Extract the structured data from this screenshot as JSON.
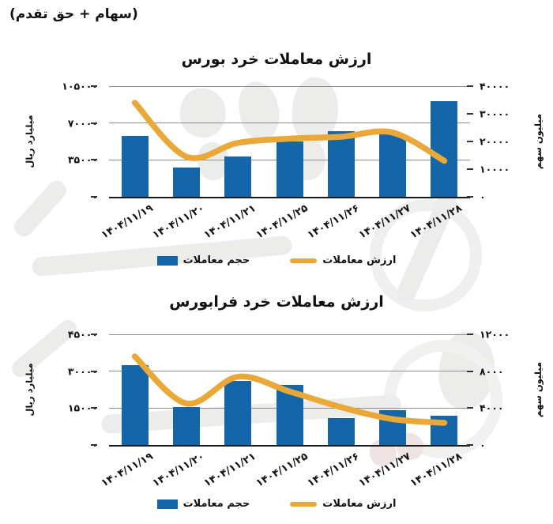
{
  "header": {
    "note": "(سهام + حق تقدم)"
  },
  "colors": {
    "bar": "#1466A8",
    "line": "#E9A838",
    "gridline": "#8C8C8C",
    "baseline": "#1A1A1A",
    "text": "#111111",
    "watermark": "#ECECEB"
  },
  "legend": {
    "volume_label": "حجم معاملات",
    "value_label": "ارزش معاملات"
  },
  "chart_data": [
    {
      "type": "bar",
      "title": "ارزش معاملات خرد بورس",
      "categories": [
        "۱۴۰۴/۱۱/۱۹",
        "۱۴۰۴/۱۱/۲۰",
        "۱۴۰۴/۱۱/۲۱",
        "۱۴۰۴/۱۱/۲۵",
        "۱۴۰۴/۱۱/۲۶",
        "۱۴۰۴/۱۱/۲۷",
        "۱۴۰۴/۱۱/۲۸"
      ],
      "series": [
        {
          "name": "حجم معاملات",
          "type": "bar",
          "axis": "left",
          "values": [
            57500,
            27700,
            38000,
            52500,
            62500,
            59000,
            90500
          ]
        },
        {
          "name": "ارزش معاملات",
          "type": "line",
          "axis": "right",
          "values": [
            34000,
            14500,
            19500,
            21000,
            21700,
            23200,
            13000
          ]
        }
      ],
      "left_axis": {
        "label": "میلیارد ریال",
        "ticks": [
          0,
          35000,
          70000,
          105000
        ],
        "max": 105000
      },
      "right_axis": {
        "label": "میلیون سهم",
        "ticks": [
          0,
          10000,
          20000,
          30000,
          40000
        ],
        "max": 40000
      },
      "grid": true,
      "legend_position": "bottom"
    },
    {
      "type": "bar",
      "title": "ارزش معاملات خرد فرابورس",
      "categories": [
        "۱۴۰۴/۱۱/۱۹",
        "۱۴۰۴/۱۱/۲۰",
        "۱۴۰۴/۱۱/۲۱",
        "۱۴۰۴/۱۱/۲۵",
        "۱۴۰۴/۱۱/۲۶",
        "۱۴۰۴/۱۱/۲۷",
        "۱۴۰۴/۱۱/۲۸"
      ],
      "series": [
        {
          "name": "حجم معاملات",
          "type": "bar",
          "axis": "left",
          "values": [
            32500,
            15500,
            26000,
            24500,
            11000,
            14000,
            12000
          ]
        },
        {
          "name": "ارزش معاملات",
          "type": "line",
          "axis": "right",
          "values": [
            9600,
            4500,
            7400,
            5800,
            4100,
            2800,
            2400
          ]
        }
      ],
      "left_axis": {
        "label": "میلیارد ریال",
        "ticks": [
          0,
          15000,
          30000,
          45000
        ],
        "max": 45000
      },
      "right_axis": {
        "label": "میلیون سهم",
        "ticks": [
          0,
          4000,
          8000,
          12000
        ],
        "max": 12000
      },
      "grid": true,
      "legend_position": "bottom"
    }
  ]
}
